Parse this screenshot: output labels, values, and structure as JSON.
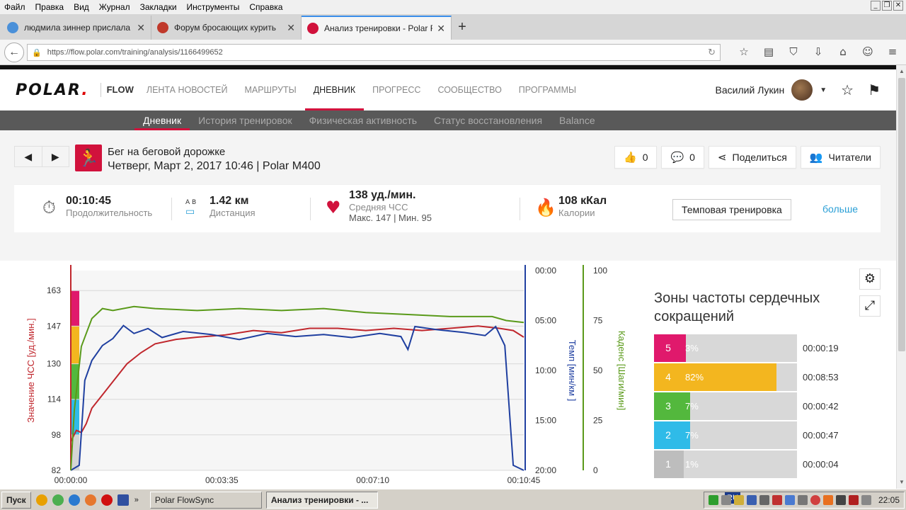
{
  "browser": {
    "menu": [
      "Файл",
      "Правка",
      "Вид",
      "Журнал",
      "Закладки",
      "Инструменты",
      "Справка"
    ],
    "tabs": [
      {
        "title": "людмила зиннер прислала н...",
        "color": "#4a90d9",
        "active": false
      },
      {
        "title": "Форум бросающих курить",
        "color": "#c0392b",
        "active": false
      },
      {
        "title": "Анализ тренировки - Polar F...",
        "color": "#d1123c",
        "active": true
      }
    ],
    "url": "https://flow.polar.com/training/analysis/1166499652"
  },
  "site": {
    "logo": "POLAR",
    "flow": "FLOW",
    "nav": [
      {
        "label": "ЛЕНТА НОВОСТЕЙ",
        "active": false
      },
      {
        "label": "МАРШРУТЫ",
        "active": false
      },
      {
        "label": "ДНЕВНИК",
        "active": true
      },
      {
        "label": "ПРОГРЕСС",
        "active": false
      },
      {
        "label": "СООБЩЕСТВО",
        "active": false
      },
      {
        "label": "ПРОГРАММЫ",
        "active": false
      }
    ],
    "user": "Василий Лукин",
    "subnav": [
      {
        "label": "Дневник",
        "active": true
      },
      {
        "label": "История тренировок",
        "active": false
      },
      {
        "label": "Физическая активность",
        "active": false
      },
      {
        "label": "Статус восстановления",
        "active": false
      },
      {
        "label": "Balance",
        "active": false
      }
    ]
  },
  "session": {
    "sport": "Бег на беговой дорожке",
    "date": "Четверг, Март 2, 2017 10:46 | Polar M400",
    "likes": "0",
    "comments": "0",
    "share": "Поделиться",
    "followers": "Читатели"
  },
  "summary": {
    "duration": {
      "value": "00:10:45",
      "label": "Продолжительность"
    },
    "distance": {
      "value": "1.42 км",
      "label": "Дистанция",
      "icon_ab": "A  B"
    },
    "hr": {
      "value": "138 уд./мин.",
      "label": "Средняя ЧСС",
      "sub": "Макс. 147  |  Мин. 95"
    },
    "calories": {
      "value": "108 кКал",
      "label": "Калории"
    },
    "tempo_button": "Темповая тренировка",
    "more": "больше"
  },
  "chart_data": {
    "type": "line",
    "x_ticks": [
      "00:00:00",
      "00:03:35",
      "00:07:10",
      "00:10:45"
    ],
    "hr_axis": {
      "label": "Значение ЧСС [уд./мин.]",
      "ticks": [
        "163",
        "147",
        "130",
        "114",
        "98",
        "82"
      ],
      "range": [
        82,
        172
      ],
      "color": "#c0272d"
    },
    "pace_axis": {
      "label": "Темп [мин/км ]",
      "ticks": [
        "00:00",
        "05:00",
        "10:00",
        "15:00",
        "20:00"
      ],
      "range": [
        0,
        20
      ],
      "color": "#1f3fa0"
    },
    "cadence_axis": {
      "label": "Каденс [Шаги/мин]",
      "ticks": [
        "100",
        "75",
        "50",
        "25",
        "0"
      ],
      "range": [
        0,
        100
      ],
      "color": "#5a9a1a"
    },
    "x_range_sec": [
      0,
      645
    ],
    "series": [
      {
        "name": "ЧСС",
        "color": "#c0272d",
        "axis": "hr",
        "x": [
          0,
          8,
          15,
          22,
          30,
          45,
          60,
          80,
          100,
          120,
          150,
          180,
          220,
          260,
          300,
          340,
          380,
          420,
          460,
          500,
          540,
          580,
          610,
          630,
          645
        ],
        "values": [
          95,
          100,
          99,
          103,
          110,
          116,
          122,
          130,
          135,
          139,
          141,
          142,
          143,
          145,
          144,
          146,
          146,
          145,
          146,
          145,
          146,
          147,
          146,
          145,
          142
        ]
      },
      {
        "name": "Темп",
        "color": "#1f3fa0",
        "axis": "pace",
        "x": [
          0,
          12,
          20,
          30,
          45,
          60,
          75,
          90,
          110,
          130,
          160,
          200,
          240,
          280,
          320,
          360,
          400,
          440,
          470,
          480,
          490,
          520,
          560,
          590,
          605,
          618,
          630,
          645
        ],
        "values": [
          20,
          19.5,
          11,
          9,
          7.5,
          6.8,
          5.5,
          6.3,
          5.8,
          6.7,
          6.1,
          6.4,
          6.9,
          6.3,
          6.6,
          6.4,
          6.7,
          6.3,
          6.6,
          7.9,
          5.6,
          5.9,
          6.2,
          6.5,
          5.6,
          7.5,
          19.5,
          20
        ]
      },
      {
        "name": "Каденс",
        "color": "#5a9a1a",
        "axis": "cadence",
        "x": [
          0,
          5,
          15,
          30,
          45,
          60,
          90,
          120,
          180,
          240,
          300,
          360,
          420,
          480,
          540,
          600,
          620,
          645
        ],
        "values": [
          0,
          30,
          62,
          76,
          81,
          80,
          82,
          81,
          80,
          81,
          80,
          81,
          79,
          78,
          77,
          77,
          75,
          74
        ]
      }
    ],
    "zone_bands": [
      {
        "from": 82,
        "to": 98,
        "color": "#d5d5d5"
      },
      {
        "from": 98,
        "to": 114,
        "color": "#2fbbe8"
      },
      {
        "from": 114,
        "to": 130,
        "color": "#53b83d"
      },
      {
        "from": 130,
        "to": 147,
        "color": "#f3b61f"
      },
      {
        "from": 147,
        "to": 163,
        "color": "#e0196c"
      }
    ]
  },
  "zones": {
    "title": "Зоны частоты сердечных сокращений",
    "rows": [
      {
        "num": "5",
        "pct": "3%",
        "frac": 0.03,
        "time": "00:00:19",
        "color": "#e0196c"
      },
      {
        "num": "4",
        "pct": "82%",
        "frac": 0.82,
        "time": "00:08:53",
        "color": "#f3b61f"
      },
      {
        "num": "3",
        "pct": "7%",
        "frac": 0.07,
        "time": "00:00:42",
        "color": "#53b83d"
      },
      {
        "num": "2",
        "pct": "7%",
        "frac": 0.07,
        "time": "00:00:47",
        "color": "#2fbbe8"
      },
      {
        "num": "1",
        "pct": "1%",
        "frac": 0.01,
        "time": "00:00:04",
        "color": "#bdbdbd"
      }
    ]
  },
  "taskbar": {
    "start": "Пуск",
    "tasks": [
      {
        "label": "Polar FlowSync",
        "active": false
      },
      {
        "label": "Анализ тренировки - ...",
        "active": true
      }
    ],
    "lang": "RU",
    "clock": "22:05"
  }
}
